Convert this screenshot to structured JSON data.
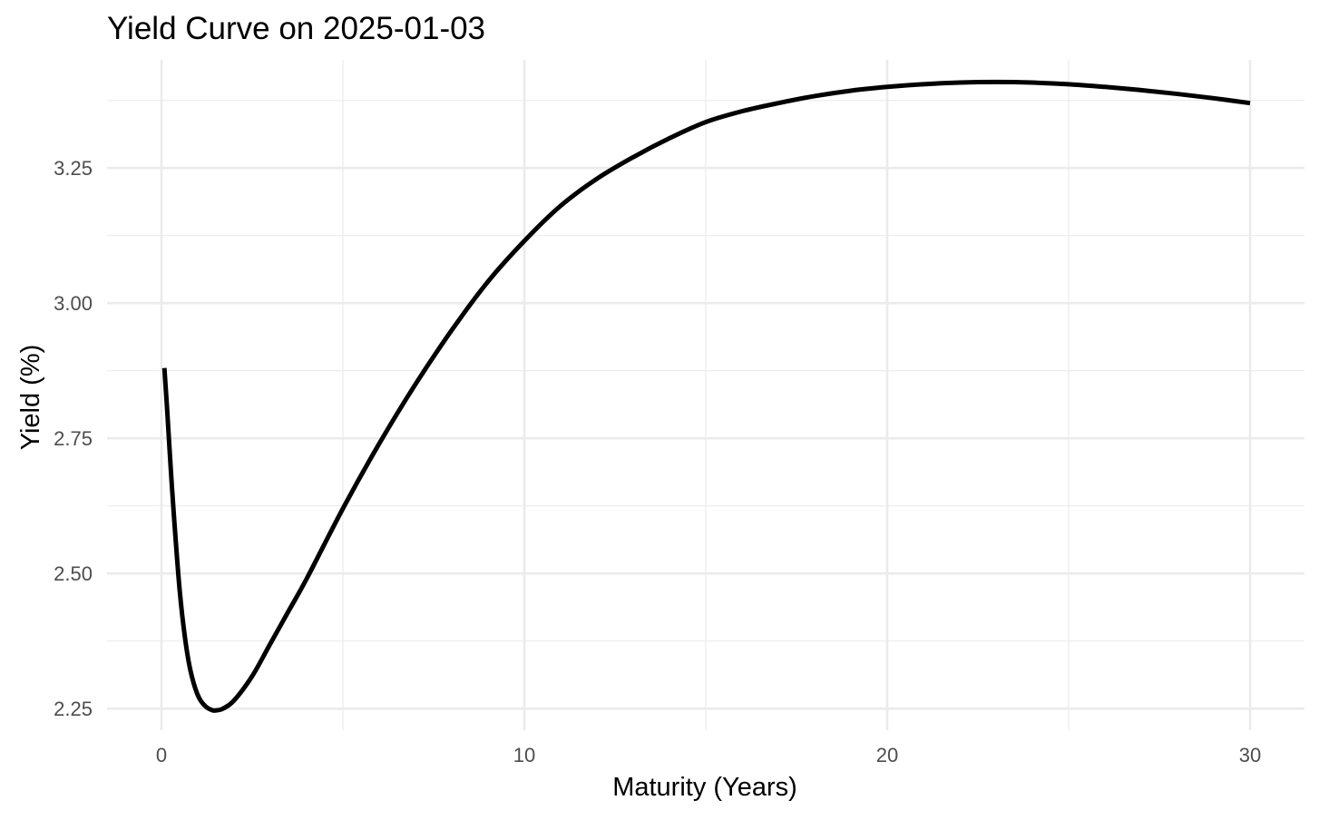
{
  "chart_data": {
    "type": "line",
    "title": "Yield Curve on 2025-01-03",
    "xlabel": "Maturity (Years)",
    "ylabel": "Yield (%)",
    "xlim": [
      -1.5,
      31.5
    ],
    "ylim": [
      2.21,
      3.45
    ],
    "x_ticks": [
      0,
      10,
      20,
      30
    ],
    "x_tick_labels": [
      "0",
      "10",
      "20",
      "30"
    ],
    "x_minor_ticks": [
      5,
      15,
      25
    ],
    "y_ticks": [
      2.25,
      2.5,
      2.75,
      3.0,
      3.25
    ],
    "y_tick_labels": [
      "2.25",
      "2.50",
      "2.75",
      "3.00",
      "3.25"
    ],
    "y_minor_ticks": [
      2.375,
      2.625,
      2.875,
      3.125,
      3.375
    ],
    "grid": true,
    "legend": "none",
    "line_color": "#000000",
    "grid_color": "#ebebeb",
    "series": [
      {
        "x": [
          0.08,
          0.15,
          0.25,
          0.35,
          0.5,
          0.65,
          0.8,
          1.0,
          1.2,
          1.4,
          1.55,
          1.7,
          2.0,
          2.5,
          3.0,
          3.5,
          4.0,
          5.0,
          6.0,
          7.0,
          8.0,
          9.0,
          10.0,
          11.0,
          12.0,
          13.0,
          14.0,
          15.0,
          16.0,
          17.0,
          18.0,
          19.0,
          20.0,
          21.0,
          22.0,
          23.0,
          24.0,
          25.0,
          26.0,
          27.0,
          28.0,
          29.0,
          30.0
        ],
        "y": [
          2.88,
          2.81,
          2.7,
          2.6,
          2.47,
          2.38,
          2.32,
          2.275,
          2.255,
          2.247,
          2.247,
          2.25,
          2.265,
          2.31,
          2.37,
          2.43,
          2.49,
          2.62,
          2.74,
          2.85,
          2.95,
          3.04,
          3.115,
          3.18,
          3.23,
          3.27,
          3.305,
          3.335,
          3.355,
          3.37,
          3.383,
          3.393,
          3.4,
          3.405,
          3.408,
          3.409,
          3.408,
          3.405,
          3.4,
          3.394,
          3.387,
          3.379,
          3.37
        ]
      }
    ]
  }
}
